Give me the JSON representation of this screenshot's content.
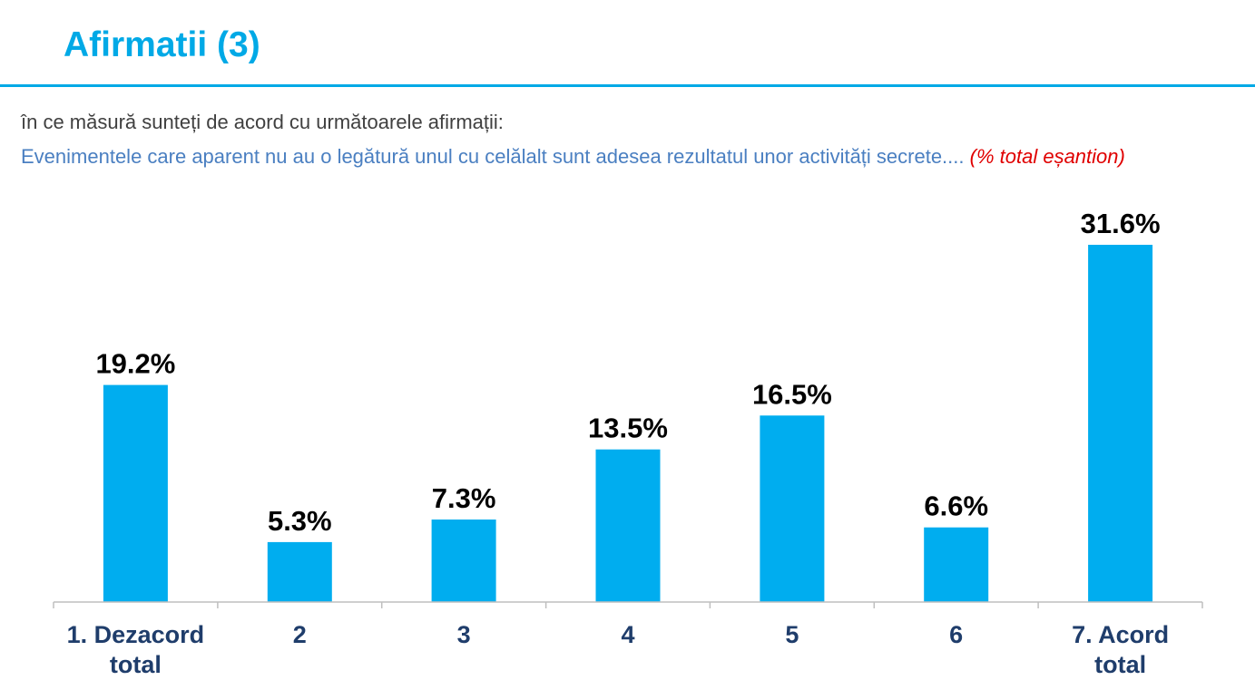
{
  "header": {
    "title": "Afirmatii (3)"
  },
  "question": {
    "intro": "în ce măsură sunteți de acord cu următoarele afirmații:",
    "statement": "Evenimentele care aparent nu au o legătură unul cu celălalt sunt adesea rezultatul unor activități secrete....",
    "note": "(% total eșantion)"
  },
  "colors": {
    "accent": "#00a9e6",
    "bar": "#00adef",
    "statement_text": "#4a7fc1",
    "note_text": "#e00000",
    "category_text": "#1f3d6b"
  },
  "chart_data": {
    "type": "bar",
    "categories": [
      [
        "1. Dezacord",
        "total"
      ],
      [
        "2"
      ],
      [
        "3"
      ],
      [
        "4"
      ],
      [
        "5"
      ],
      [
        "6"
      ],
      [
        "7. Acord",
        "total"
      ]
    ],
    "values": [
      19.2,
      5.3,
      7.3,
      13.5,
      16.5,
      6.6,
      31.6
    ],
    "value_labels": [
      "19.2%",
      "5.3%",
      "7.3%",
      "13.5%",
      "16.5%",
      "6.6%",
      "31.6%"
    ],
    "ylim": [
      0,
      31.6
    ],
    "grid": false,
    "legend": "none"
  }
}
